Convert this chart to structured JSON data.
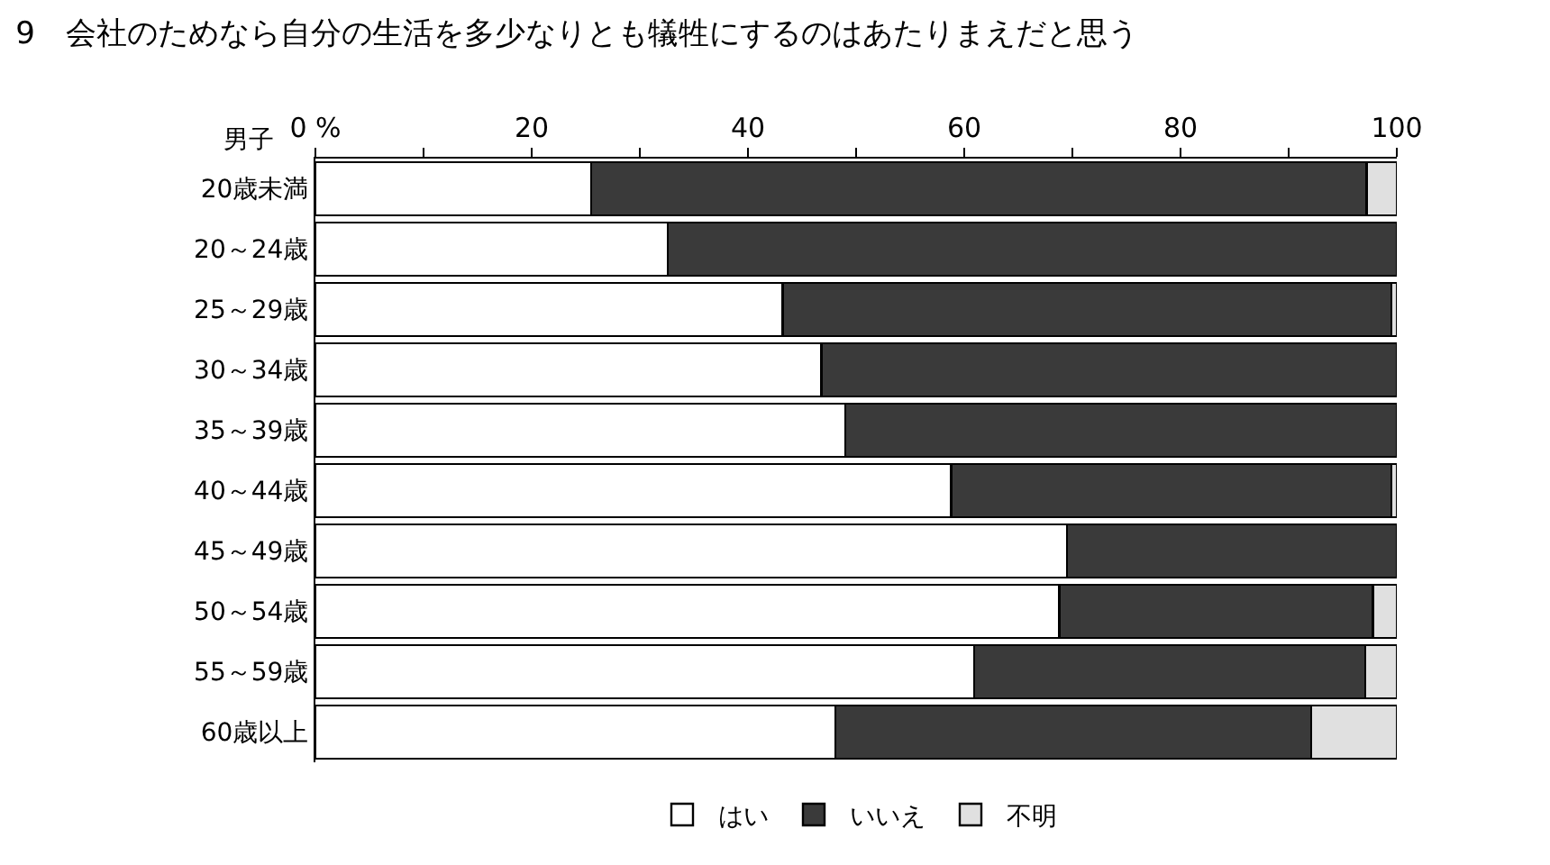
{
  "chart_data": {
    "type": "bar",
    "orientation": "horizontal",
    "stacked": true,
    "title": "9　会社のためなら自分の生活を多少なりとも犠牲にするのはあたりまえだと思う",
    "annotations": [
      "男子"
    ],
    "categories": [
      "20歳未満",
      "20～24歳",
      "25～29歳",
      "30～34歳",
      "35～39歳",
      "40～44歳",
      "45～49歳",
      "50～54歳",
      "55～59歳",
      "60歳以上"
    ],
    "series": [
      {
        "name": "はい",
        "color": "#ffffff",
        "values": [
          25.5,
          32.6,
          43.2,
          46.8,
          49.0,
          58.8,
          69.5,
          68.8,
          60.9,
          48.1
        ]
      },
      {
        "name": "いいえ",
        "color": "#3a3a3a",
        "values": [
          71.7,
          67.4,
          56.3,
          53.2,
          51.0,
          40.7,
          30.5,
          29.0,
          36.2,
          44.0
        ]
      },
      {
        "name": "不明",
        "color": "#e0e0e0",
        "values": [
          2.8,
          0,
          0.5,
          0,
          0,
          0.5,
          0,
          2.2,
          2.9,
          7.9
        ]
      }
    ],
    "xlim": [
      0,
      100
    ],
    "xticks": [
      {
        "value": 0,
        "label": "0 %"
      },
      {
        "value": 10,
        "label": null
      },
      20,
      {
        "value": 30,
        "label": null
      },
      40,
      {
        "value": 50,
        "label": null
      },
      60,
      {
        "value": 70,
        "label": null
      },
      80,
      {
        "value": 90,
        "label": null
      },
      100
    ],
    "grid": false,
    "legend": "bottom"
  }
}
